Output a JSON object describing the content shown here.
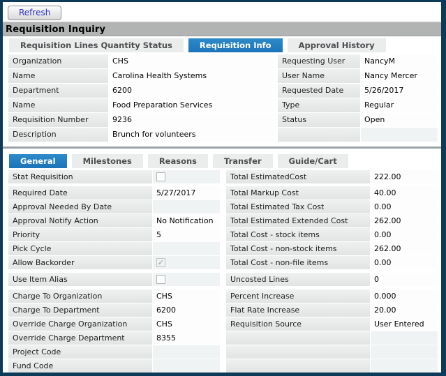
{
  "window": {
    "title": "Requisition Inquiry"
  },
  "toolbar": {
    "refresh_label": "Refresh"
  },
  "icons": {
    "checkmark_glyph": "✓"
  },
  "colors": {
    "window_border": "#0e3a59",
    "selected_tab_blue": "#1d79bd",
    "title_bar_gray": "#b2b4b4",
    "label_cell_gray": "#e8eaea",
    "empty_cell_gray": "#f0f3f3",
    "refresh_text_blue": "#2b30c6"
  },
  "tabs_primary": [
    {
      "label": "Requisition Lines Quantity Status",
      "selected": false
    },
    {
      "label": "Requisition Info",
      "selected": true
    },
    {
      "label": "Approval History",
      "selected": false
    }
  ],
  "tabs_secondary": [
    {
      "label": "General",
      "selected": true
    },
    {
      "label": "Milestones",
      "selected": false
    },
    {
      "label": "Reasons",
      "selected": false
    },
    {
      "label": "Transfer",
      "selected": false
    },
    {
      "label": "Guide/Cart",
      "selected": false
    }
  ],
  "upper_form": {
    "left_rows": [
      {
        "label": "Organization",
        "value": "CHS"
      },
      {
        "label": "Name",
        "value": "Carolina Health Systems"
      },
      {
        "label": "Department",
        "value": "6200"
      },
      {
        "label": "Name",
        "value": "Food Preparation Services"
      },
      {
        "label": "Requisition Number",
        "value": "9236"
      },
      {
        "label": "Description",
        "value": "Brunch for volunteers"
      }
    ],
    "right_rows": [
      {
        "label": "Requesting User",
        "value": "NancyM"
      },
      {
        "label": "User Name",
        "value": "Nancy Mercer"
      },
      {
        "label": "Requested Date",
        "value": "5/26/2017"
      },
      {
        "label": "Type",
        "value": "Regular"
      },
      {
        "label": "Status",
        "value": "Open"
      },
      {
        "label": "",
        "value": ""
      }
    ]
  },
  "lower_form": {
    "left_rows": [
      {
        "label": "Stat Requisition",
        "value": "",
        "checkbox": "unchecked"
      },
      {
        "label": "Required Date",
        "value": "5/27/2017"
      },
      {
        "label": "Approval Needed By Date",
        "value": ""
      },
      {
        "label": "Approval Notify Action",
        "value": "No Notification"
      },
      {
        "label": "Priority",
        "value": "5"
      },
      {
        "label": "Pick Cycle",
        "value": ""
      },
      {
        "label": "Allow Backorder",
        "value": "",
        "checkbox": "checked-disabled"
      },
      {
        "label": "Use Item Alias",
        "value": "",
        "checkbox": "unchecked"
      },
      {
        "label": "Charge To Organization",
        "value": "CHS"
      },
      {
        "label": "Charge To Department",
        "value": "6200"
      },
      {
        "label": "Override Charge Organization",
        "value": "CHS"
      },
      {
        "label": "Override Charge Department",
        "value": "8355"
      },
      {
        "label": "Project Code",
        "value": ""
      },
      {
        "label": "Fund Code",
        "value": ""
      }
    ],
    "right_rows": [
      {
        "label": "Total EstimatedCost",
        "value": "222.00"
      },
      {
        "label": "Total Markup Cost",
        "value": "40.00"
      },
      {
        "label": "Total Estimated Tax Cost",
        "value": "0.00"
      },
      {
        "label": "Total Estimated Extended Cost",
        "value": "262.00"
      },
      {
        "label": "Total Cost - stock items",
        "value": "0.00"
      },
      {
        "label": "Total Cost - non-stock items",
        "value": "262.00"
      },
      {
        "label": "Total Cost - non-file items",
        "value": "0.00"
      },
      {
        "label": "Uncosted Lines",
        "value": "0"
      },
      {
        "label": "Percent Increase",
        "value": "0.000"
      },
      {
        "label": "Flat Rate Increase",
        "value": "20.00"
      },
      {
        "label": "Requisition Source",
        "value": "User Entered"
      },
      {
        "label": "",
        "value": ""
      },
      {
        "label": "",
        "value": ""
      },
      {
        "label": "",
        "value": ""
      }
    ]
  }
}
